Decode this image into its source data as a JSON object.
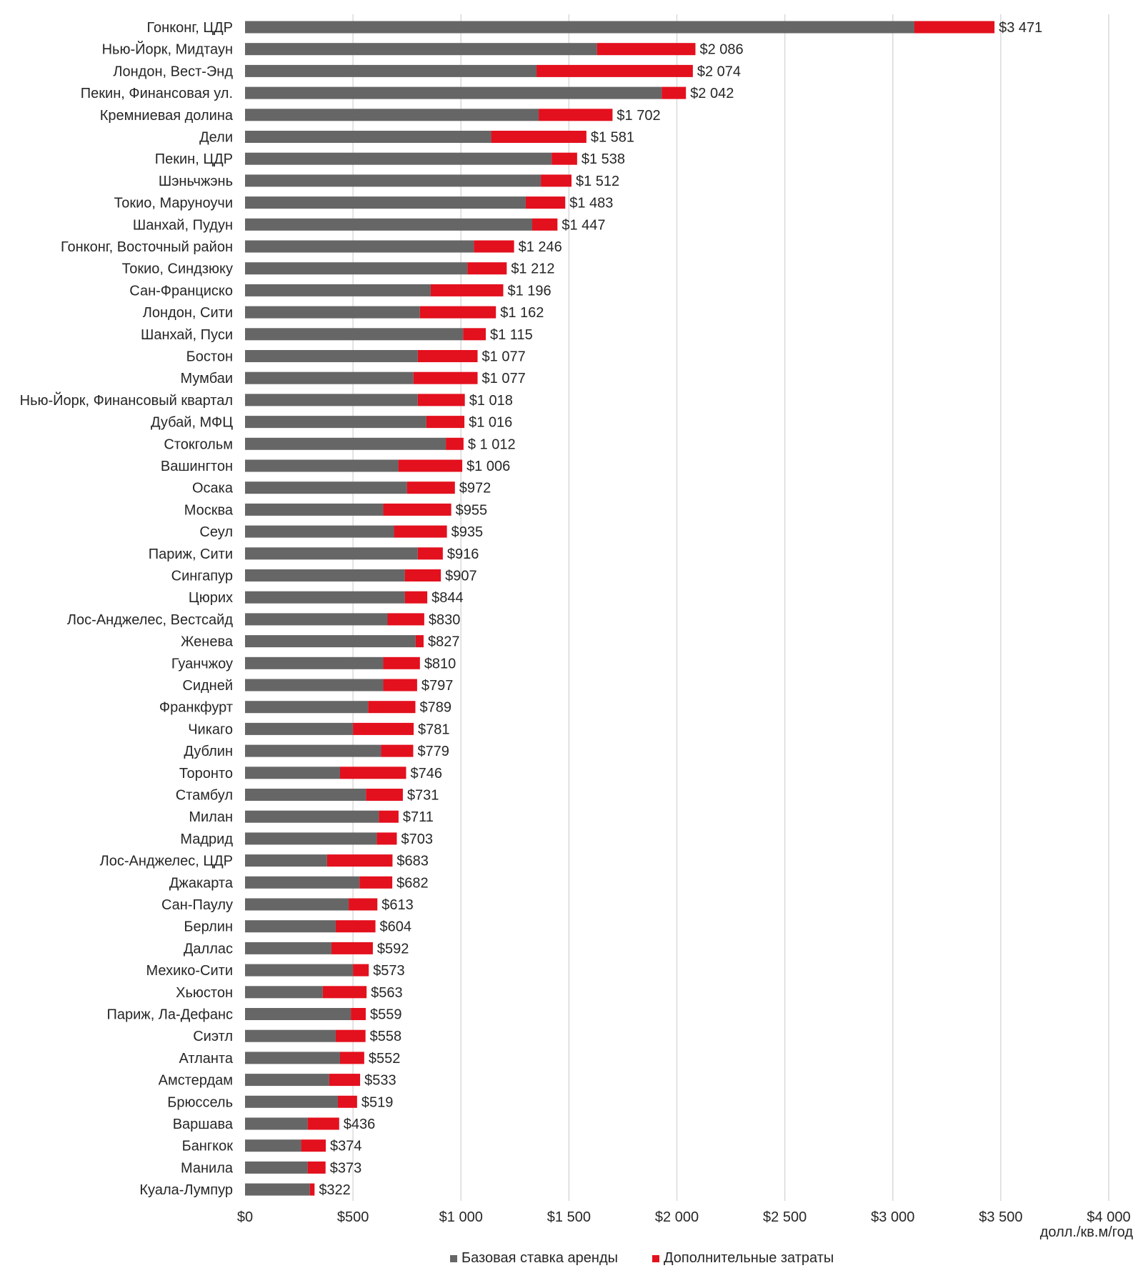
{
  "chart_data": {
    "type": "bar",
    "orientation": "horizontal",
    "stacked": true,
    "title": "",
    "xlabel": "долл./кв.м/год",
    "ylabel": "",
    "xlim": [
      0,
      4000
    ],
    "x_ticks": [
      0,
      500,
      1000,
      1500,
      2000,
      2500,
      3000,
      3500,
      4000
    ],
    "x_tick_labels": [
      "$0",
      "$500",
      "$1 000",
      "$1 500",
      "$2 000",
      "$2 500",
      "$3 000",
      "$3 500",
      "$4 000"
    ],
    "grid": true,
    "legend_position": "bottom",
    "categories": [
      "Гонконг, ЦДР",
      "Нью-Йорк, Мидтаун",
      "Лондон, Вест-Энд",
      "Пекин, Финансовая ул.",
      "Кремниевая долина",
      "Дели",
      "Пекин, ЦДР",
      "Шэньчжэнь",
      "Токио, Маруноучи",
      "Шанхай, Пудун",
      "Гонконг, Восточный район",
      "Токио, Синдзюку",
      "Сан-Франциско",
      "Лондон, Сити",
      "Шанхай, Пуси",
      "Бостон",
      "Мумбаи",
      "Нью-Йорк, Финансовый квартал",
      "Дубай, МФЦ",
      "Стокгольм",
      "Вашингтон",
      "Осака",
      "Москва",
      "Сеул",
      "Париж, Сити",
      "Сингапур",
      "Цюрих",
      "Лос-Анджелес, Вестсайд",
      "Женева",
      "Гуанчжоу",
      "Сидней",
      "Франкфурт",
      "Чикаго",
      "Дублин",
      "Торонто",
      "Стамбул",
      "Милан",
      "Мадрид",
      "Лос-Анджелес, ЦДР",
      "Джакарта",
      "Сан-Паулу",
      "Берлин",
      "Даллас",
      "Мехико-Сити",
      "Хьюстон",
      "Париж, Ла-Дефанс",
      "Сиэтл",
      "Атланта",
      "Амстердам",
      "Брюссель",
      "Варшава",
      "Бангкок",
      "Манила",
      "Куала-Лумпур"
    ],
    "series": [
      {
        "name": "Базовая ставка аренды",
        "color": "#666666",
        "values": [
          3100,
          1630,
          1350,
          1930,
          1360,
          1140,
          1420,
          1370,
          1300,
          1330,
          1060,
          1030,
          860,
          810,
          1010,
          800,
          780,
          800,
          840,
          930,
          710,
          750,
          640,
          690,
          800,
          740,
          740,
          660,
          790,
          640,
          640,
          570,
          500,
          630,
          440,
          560,
          620,
          610,
          380,
          530,
          480,
          420,
          400,
          500,
          360,
          490,
          420,
          440,
          390,
          430,
          290,
          260,
          290,
          300
        ]
      },
      {
        "name": "Дополнительные затраты",
        "color": "#e3101e",
        "values": [
          371,
          456,
          724,
          112,
          342,
          441,
          118,
          142,
          183,
          117,
          186,
          182,
          336,
          352,
          105,
          277,
          297,
          218,
          176,
          82,
          296,
          222,
          315,
          245,
          116,
          167,
          104,
          170,
          37,
          170,
          157,
          219,
          281,
          149,
          306,
          171,
          91,
          93,
          303,
          152,
          133,
          184,
          192,
          73,
          203,
          69,
          138,
          112,
          143,
          89,
          146,
          114,
          83,
          22
        ]
      }
    ],
    "totals": [
      3471,
      2086,
      2074,
      2042,
      1702,
      1581,
      1538,
      1512,
      1483,
      1447,
      1246,
      1212,
      1196,
      1162,
      1115,
      1077,
      1077,
      1018,
      1016,
      1012,
      1006,
      972,
      955,
      935,
      916,
      907,
      844,
      830,
      827,
      810,
      797,
      789,
      781,
      779,
      746,
      731,
      711,
      703,
      683,
      682,
      613,
      604,
      592,
      573,
      563,
      559,
      558,
      552,
      533,
      519,
      436,
      374,
      373,
      322
    ],
    "data_labels": [
      "$3 471",
      "$2 086",
      "$2 074",
      "$2 042",
      "$1 702",
      "$1 581",
      "$1 538",
      "$1 512",
      "$1 483",
      "$1 447",
      "$1 246",
      "$1 212",
      "$1 196",
      "$1 162",
      "$1 115",
      "$1 077",
      "$1 077",
      "$1 018",
      "$1 016",
      "$ 1 012",
      "$1 006",
      "$972",
      "$955",
      "$935",
      "$916",
      "$907",
      "$844",
      "$830",
      "$827",
      "$810",
      "$797",
      "$789",
      "$781",
      "$779",
      "$746",
      "$731",
      "$711",
      "$703",
      "$683",
      "$682",
      "$613",
      "$604",
      "$592",
      "$573",
      "$563",
      "$559",
      "$558",
      "$552",
      "$533",
      "$519",
      "$436",
      "$374",
      "$373",
      "$322"
    ]
  }
}
